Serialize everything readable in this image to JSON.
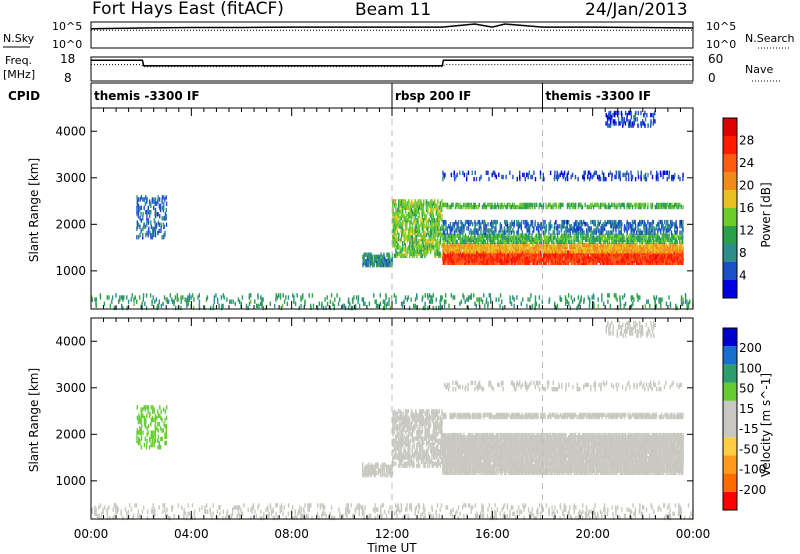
{
  "header": {
    "station": "Fort Hays East (fitACF)",
    "beam": "Beam 11",
    "date": "24/Jan/2013"
  },
  "nsky_panel": {
    "left_label": "N.Sky",
    "right_label": "N.Search",
    "left_ticks": [
      "10^5",
      "10^0"
    ],
    "right_ticks": [
      "10^5",
      "10^0"
    ]
  },
  "freq_panel": {
    "left_label_1": "Freq.",
    "left_label_2": "[MHz]",
    "right_label": "Nave",
    "left_ticks": [
      "18",
      "8"
    ],
    "right_ticks": [
      "60",
      "0"
    ]
  },
  "cpid_panel": {
    "label": "CPID",
    "segments": [
      {
        "start_hour": 0,
        "text": "themis -3300 IF"
      },
      {
        "start_hour": 12,
        "text": "rbsp 200 IF"
      },
      {
        "start_hour": 18,
        "text": "themis -3300 IF"
      }
    ]
  },
  "colors": {
    "power_scale": [
      "#0000e0",
      "#1a4fc8",
      "#2e8c8c",
      "#2aa04a",
      "#6ccc2a",
      "#e8c020",
      "#f08a1a",
      "#ff5a12",
      "#ff1a00",
      "#e00000"
    ],
    "velocity_scale": [
      "#ff0000",
      "#ff6a00",
      "#ff9a1a",
      "#ffcc44",
      "#c8c8c0",
      "#c8c8c0",
      "#66cc33",
      "#2e9e6e",
      "#1a6ed0",
      "#0000cc"
    ],
    "ground_scatter": "#c8c8c0"
  },
  "chart_data": [
    {
      "type": "line",
      "title": "N.Sky / N.Search",
      "x_unit": "hours UT",
      "ylim": [
        0,
        5
      ],
      "y_scale": "log10",
      "series": [
        {
          "name": "N.Sky",
          "x": [
            0,
            1,
            2,
            4,
            6,
            8,
            10,
            12,
            14,
            15.3,
            16,
            16.5,
            18,
            20,
            22,
            24
          ],
          "values": [
            3.9,
            4.0,
            4.1,
            4.2,
            4.2,
            4.3,
            4.3,
            4.3,
            4.3,
            5.0,
            4.3,
            5.0,
            4.3,
            4.3,
            4.2,
            4.1
          ]
        },
        {
          "name": "N.Search",
          "x": [
            0,
            24
          ],
          "values": [
            3.6,
            3.6
          ]
        }
      ]
    },
    {
      "type": "line",
      "title": "Freq. / Nave",
      "x_unit": "hours UT",
      "ylim": [
        8,
        18
      ],
      "series": [
        {
          "name": "Freq. [MHz]",
          "x": [
            0,
            2.05,
            2.1,
            14.0,
            14.05,
            24
          ],
          "values": [
            17.0,
            17.0,
            14.5,
            14.5,
            17.0,
            17.0
          ]
        },
        {
          "name": "Nave",
          "x": [
            0,
            2,
            2.1,
            14,
            14.1,
            24
          ],
          "values": [
            42,
            42,
            36,
            36,
            42,
            42
          ]
        }
      ]
    },
    {
      "type": "heatmap",
      "title": "Power [dB]",
      "xlabel": "Time UT",
      "ylabel": "Slant Range [km]",
      "x_ticks": [
        "00:00",
        "04:00",
        "08:00",
        "12:00",
        "16:00",
        "20:00",
        "00:00"
      ],
      "x_tick_hours": [
        0,
        4,
        8,
        12,
        16,
        20,
        24
      ],
      "xlim": [
        0,
        24
      ],
      "ylim": [
        180,
        4500
      ],
      "y_ticks": [
        1000,
        2000,
        3000,
        4000
      ],
      "colorbar": {
        "label": "Power [dB]",
        "ticks": [
          4,
          8,
          12,
          16,
          20,
          24,
          28
        ],
        "range": [
          0,
          32
        ]
      },
      "regions": [
        {
          "t": [
            0.0,
            24.0
          ],
          "r": [
            180,
            480
          ],
          "value": 10,
          "density": 0.15
        },
        {
          "t": [
            10.8,
            12.0
          ],
          "r": [
            1100,
            1350
          ],
          "value": 8,
          "density": 0.8
        },
        {
          "t": [
            12.0,
            14.0
          ],
          "r": [
            1300,
            2500
          ],
          "value": 14,
          "density": 0.6
        },
        {
          "t": [
            14.0,
            23.6
          ],
          "r": [
            1150,
            1400
          ],
          "value": 26,
          "density": 0.95
        },
        {
          "t": [
            14.0,
            23.6
          ],
          "r": [
            1400,
            1600
          ],
          "value": 19,
          "density": 0.9
        },
        {
          "t": [
            14.0,
            23.6
          ],
          "r": [
            1600,
            1800
          ],
          "value": 12,
          "density": 0.75
        },
        {
          "t": [
            14.0,
            23.6
          ],
          "r": [
            1800,
            2050
          ],
          "value": 6,
          "density": 0.5
        },
        {
          "t": [
            14.0,
            23.6
          ],
          "r": [
            2350,
            2450
          ],
          "value": 12,
          "density": 0.7
        },
        {
          "t": [
            14.0,
            23.6
          ],
          "r": [
            2950,
            3150
          ],
          "value": 4,
          "density": 0.25
        },
        {
          "t": [
            1.8,
            3.0
          ],
          "r": [
            1700,
            2600
          ],
          "value": 6,
          "density": 0.3
        },
        {
          "t": [
            20.5,
            22.5
          ],
          "r": [
            4100,
            4400
          ],
          "value": 4,
          "density": 0.4
        }
      ]
    },
    {
      "type": "heatmap",
      "title": "Velocity [m s^-1]",
      "xlabel": "Time UT",
      "ylabel": "Slant Range [km]",
      "x_ticks": [
        "00:00",
        "04:00",
        "08:00",
        "12:00",
        "16:00",
        "20:00",
        "00:00"
      ],
      "x_tick_hours": [
        0,
        4,
        8,
        12,
        16,
        20,
        24
      ],
      "xlim": [
        0,
        24
      ],
      "ylim": [
        180,
        4500
      ],
      "y_ticks": [
        1000,
        2000,
        3000,
        4000
      ],
      "colorbar": {
        "label": "Velocity [m s^-1]",
        "ticks": [
          "200",
          "100",
          "50",
          "15",
          "-15",
          "-50",
          "-100",
          "-200"
        ],
        "range": [
          -250,
          250
        ]
      },
      "regions": [
        {
          "t": [
            0.0,
            24.0
          ],
          "r": [
            180,
            480
          ],
          "value": 30,
          "density": 0.2
        },
        {
          "t": [
            10.8,
            12.0
          ],
          "r": [
            1100,
            1350
          ],
          "value": 20,
          "density": 0.7
        },
        {
          "t": [
            12.0,
            14.0
          ],
          "r": [
            1300,
            2500
          ],
          "value": 0,
          "density": 0.6
        },
        {
          "t": [
            14.0,
            23.6
          ],
          "r": [
            1150,
            2000
          ],
          "value": 0,
          "density": 0.95
        },
        {
          "t": [
            14.0,
            23.6
          ],
          "r": [
            2350,
            2450
          ],
          "value": 0,
          "density": 0.8
        },
        {
          "t": [
            14.0,
            23.6
          ],
          "r": [
            2950,
            3150
          ],
          "value": -40,
          "density": 0.2
        },
        {
          "t": [
            1.8,
            3.0
          ],
          "r": [
            1700,
            2600
          ],
          "value": 60,
          "density": 0.3
        },
        {
          "t": [
            20.5,
            22.5
          ],
          "r": [
            4100,
            4400
          ],
          "value": 0,
          "density": 0.4
        }
      ]
    }
  ]
}
